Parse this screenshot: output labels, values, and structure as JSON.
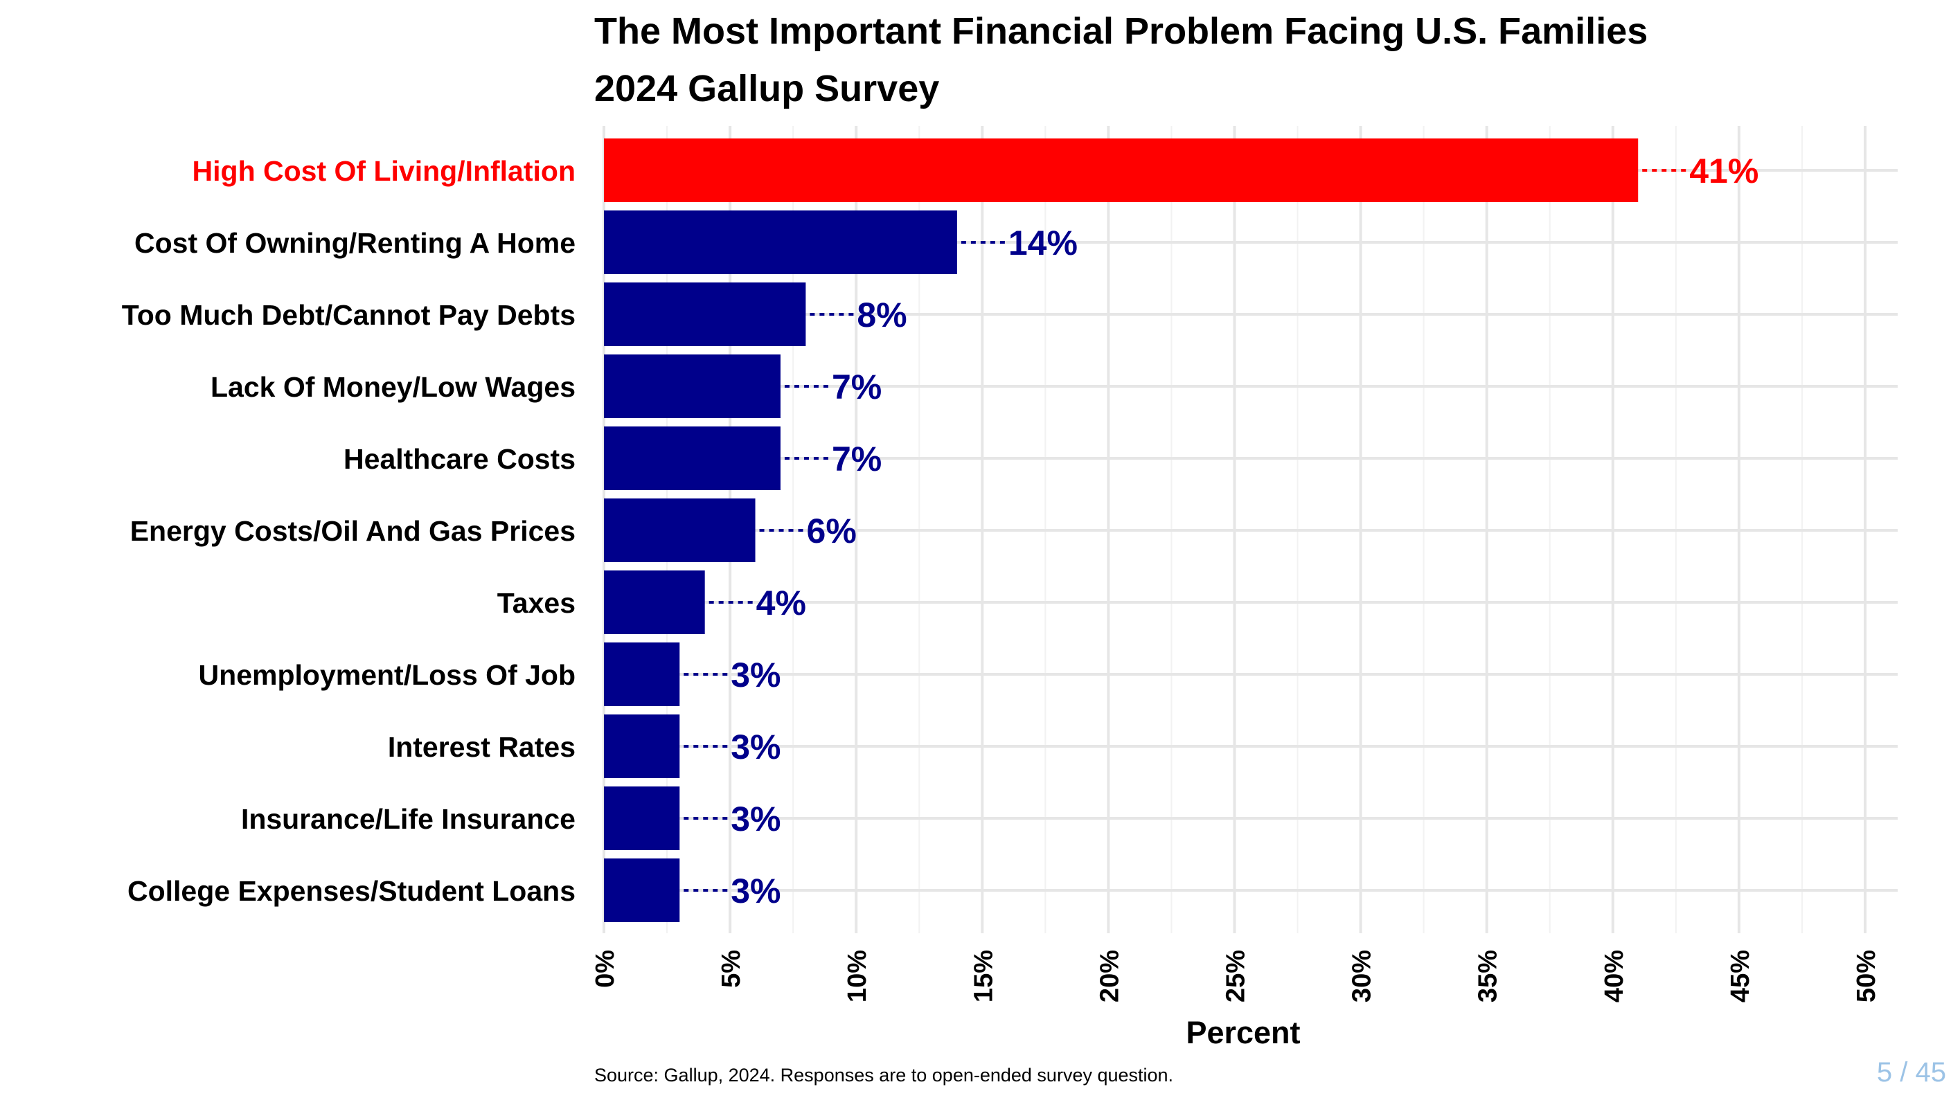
{
  "chart_data": {
    "type": "bar",
    "orientation": "horizontal",
    "title": "The Most Important Financial Problem Facing U.S. Families",
    "subtitle": "2024 Gallup Survey",
    "xlabel": "Percent",
    "ylabel": "",
    "xlim": [
      0,
      50
    ],
    "x_ticks": [
      "0%",
      "5%",
      "10%",
      "15%",
      "20%",
      "25%",
      "30%",
      "35%",
      "40%",
      "45%",
      "50%"
    ],
    "x_tick_values": [
      0,
      5,
      10,
      15,
      20,
      25,
      30,
      35,
      40,
      45,
      50
    ],
    "grid": true,
    "legend": "none",
    "colors": {
      "highlight": "#ff0000",
      "default": "#00008b"
    },
    "categories": [
      "High Cost Of Living/Inflation",
      "Cost Of Owning/Renting A Home",
      "Too Much Debt/Cannot Pay Debts",
      "Lack Of Money/Low Wages",
      "Healthcare Costs",
      "Energy Costs/Oil And Gas Prices",
      "Taxes",
      "Unemployment/Loss Of Job",
      "Interest Rates",
      "Insurance/Life Insurance",
      "College Expenses/Student Loans"
    ],
    "values": [
      41,
      14,
      8,
      7,
      7,
      6,
      4,
      3,
      3,
      3,
      3
    ],
    "value_labels": [
      "41%",
      "14%",
      "8%",
      "7%",
      "7%",
      "6%",
      "4%",
      "3%",
      "3%",
      "3%",
      "3%"
    ],
    "highlighted": [
      true,
      false,
      false,
      false,
      false,
      false,
      false,
      false,
      false,
      false,
      false
    ]
  },
  "footer": {
    "source": "Source: Gallup, 2024. Responses are to open-ended survey question.",
    "page_number": "5 / 45"
  }
}
